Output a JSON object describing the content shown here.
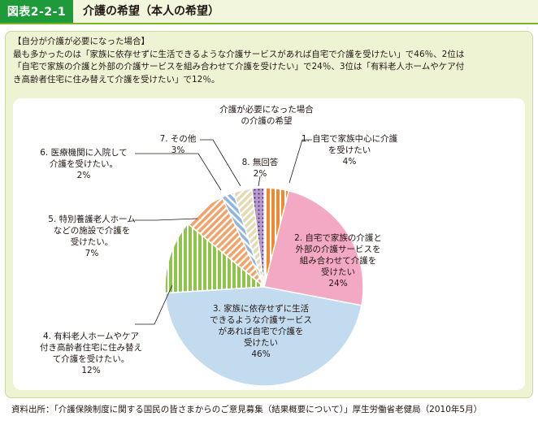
{
  "header": {
    "figure_number": "図表2-2-1",
    "title": "介護の希望（本人の希望）"
  },
  "summary": {
    "lines": [
      "【自分が介護が必要になった場合】",
      "最も多かったのは「家族に依存せずに生活できるような介護サービスがあれば自宅で介護を受けたい」で46％、2位は",
      "「自宅で家族の介護と外部の介護サービスを組み合わせて介護を受けたい」で24％、3位は「有料老人ホームやケア付",
      "き高齢者住宅に住み替えて介護を受けたい」で12％。"
    ]
  },
  "chart_data": {
    "type": "pie",
    "title": "介護が必要になった場合\nの介護の希望",
    "slices": [
      {
        "label": "1.  自宅で家族中心に介護\nを受けたい\n4%",
        "value": 4,
        "color": "#f08a32",
        "pattern": "vstripe"
      },
      {
        "label": "2.  自宅で家族の介護と\n外部の介護サービスを\n組み合わせて介護を\n受けたい\n24%",
        "value": 24,
        "color": "#f3a8c3",
        "pattern": "solid"
      },
      {
        "label": "3.  家族に依存せずに生活\nできるような介護サービス\nがあれば自宅で介護を\n受けたい\n46%",
        "value": 46,
        "color": "#c3dbef",
        "pattern": "solid"
      },
      {
        "label": "4.  有料老人ホームやケア\n付き高齢者住宅に住み替え\nて介護を受けたい。\n12%",
        "value": 12,
        "color": "#8dc449",
        "pattern": "vstripe"
      },
      {
        "label": "5.  特別養護老人ホーム\nなどの施設で介護を\n受けたい。\n7%",
        "value": 7,
        "color": "#f3a26a",
        "pattern": "diag"
      },
      {
        "label": "6.  医療機関に入院して\n介護を受けたい。\n2%",
        "value": 2,
        "color": "#8fb4e0",
        "pattern": "diag2"
      },
      {
        "label": "7.  その他\n3%",
        "value": 3,
        "color": "#e3d9b2",
        "pattern": "diag"
      },
      {
        "label": "8.  無回答\n2%",
        "value": 2,
        "color": "#b99ad0",
        "pattern": "dots"
      }
    ],
    "start_angle_deg": 0,
    "direction": "clockwise"
  },
  "source": {
    "text": "資料出所：「介護保険制度に関する国民の皆さまからのご意見募集（結果概要について）」厚生労働省老健局（2010年5月）"
  }
}
